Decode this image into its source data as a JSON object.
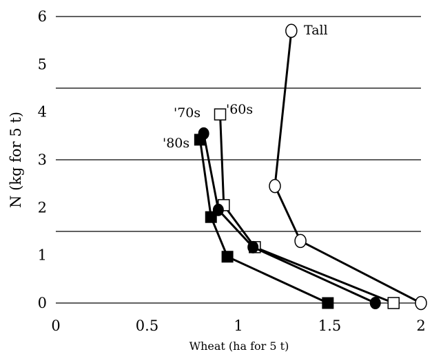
{
  "chart_data": {
    "type": "line",
    "title": "",
    "xlabel": "Wheat (ha for 5 t)",
    "ylabel": "N (kg for 5 t)",
    "xlim": [
      0,
      2
    ],
    "ylim": [
      0,
      6
    ],
    "xticks": [
      0,
      0.5,
      1,
      1.5,
      2
    ],
    "xtick_labels": [
      "0",
      "0.5",
      "1",
      "1.5",
      "2"
    ],
    "yticks": [
      0,
      1,
      2,
      3,
      4,
      5,
      6
    ],
    "ytick_labels": [
      "0",
      "1",
      "2",
      "3",
      "4",
      "5",
      "6"
    ],
    "gridlines_y": [
      0,
      1.5,
      3,
      4.5,
      6
    ],
    "series": [
      {
        "name": "Tall",
        "marker": "open-circle",
        "x": [
          2.0,
          1.34,
          1.2,
          1.29
        ],
        "y": [
          0.0,
          1.3,
          2.45,
          5.7
        ]
      },
      {
        "name": "'60s",
        "marker": "open-square",
        "x": [
          1.85,
          1.09,
          0.92,
          0.9
        ],
        "y": [
          0.0,
          1.17,
          2.05,
          3.95
        ]
      },
      {
        "name": "'70s",
        "marker": "filled-circle",
        "x": [
          1.75,
          1.08,
          0.89,
          0.81
        ],
        "y": [
          0.0,
          1.17,
          1.95,
          3.55
        ]
      },
      {
        "name": "'80s",
        "marker": "filled-square",
        "x": [
          1.49,
          0.94,
          0.85,
          0.79
        ],
        "y": [
          0.0,
          0.97,
          1.8,
          3.42
        ]
      }
    ],
    "labels": {
      "tall": "Tall",
      "s60": "'60s",
      "s70": "'70s",
      "s80": "'80s"
    }
  }
}
